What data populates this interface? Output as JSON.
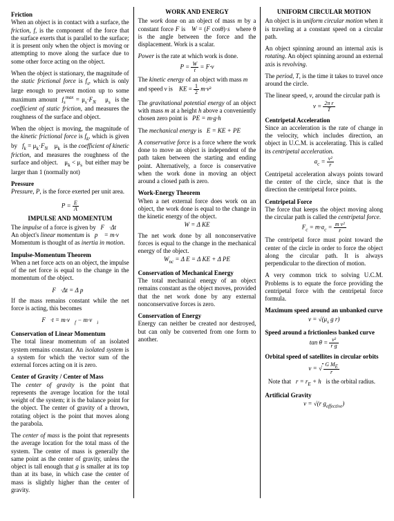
{
  "col1": {
    "h_friction": "Friction",
    "p_friction1": "When an object is in contact with a surface, the friction, f, is the component of the force that the surface exerts that is parallel to the surface; it is present only when the object is moving or attempting to move along the surface due to some other force acting on the object.",
    "p_friction2a": "When the object is stationary, the magnitude of the static frictional force is f",
    "p_friction2b": " which is only large enough to prevent motion up to some maximum amount  f",
    "p_friction2c": " = μ",
    "p_friction2d": "·F",
    "p_friction2e": "     μ",
    "p_friction2f": "  is the coefficient of static friction, and measures the roughness of the surface and object.",
    "p_friction3a": "When the object is moving, the magnitude of the kinetic frictional force is f",
    "p_friction3b": " which is given by   f",
    "p_friction3c": " = μ",
    "p_friction3d": "·F",
    "p_friction3e": "     μ",
    "p_friction3f": "  is the coefficient of kinetic friction, and measures the roughness of the surface and object.    μ",
    "p_friction3g": " < μ",
    "p_friction3h": "  but either may be larger than 1 (normally not)",
    "h_pressure": "Pressure",
    "p_pressure": "Pressure, P, is the force exerted per unit area.",
    "f_pressure": "P = E / A",
    "h_impulse": "IMPULSE AND MOMENTUM",
    "p_impulse1": "The impulse of a force is given by   F⃗·Δt",
    "p_impulse2": "An object's linear momentum is   p⃗ = m·v⃗",
    "p_impulse3": "Momentum is thought of as inertia in motion.",
    "h_imt": "Impulse-Momentum Theorem",
    "p_imt": "When a net force acts on an object, the impulse of the net force is equal to the change in the momentum of the object.",
    "f_imt": "F⃗·Δt = Δ p⃗",
    "p_imt2": "If the mass remains constant while the net force is acting, this becomes",
    "f_imt2": "F⃗·t = m·v⃗f − m·v⃗i",
    "h_clm": "Conservation of Linear Momentum",
    "p_clm": "The total linear momentum of an isolated system remains constant. An isolated system is a system for which the vector sum of the external forces acting on it is zero.",
    "h_cog": "Center of Gravity / Center of Mass",
    "p_cog": "The center of gravity is the point that represents the average location for the total weight of the system; it is the balance point for the object. The center of gravity of a thrown, rotating object is the point that moves along the parabola.",
    "p_com": "The center of mass is the point that represents the average location for the total mass of the system.  The center of mass is generally the same point as the center of gravity, unless the object is tall enough that g is smaller at its top than at its base, in which case the center of mass is slightly higher than the center of gravity."
  },
  "col2": {
    "h_work": "WORK AND ENERGY",
    "p_work1": "The work done on an object of mass m by a constant force F is   W = (F cosθ)·s   where θ is the angle between the force and the displacement.  Work is a scalar.",
    "p_power": "Power is the rate at which work is done.",
    "f_power": "P = W/t = F·v",
    "p_ke": "The kinetic energy of an object with mass m",
    "p_ke2": "and speed v is     KE = ½ m·v²",
    "p_gpe": "The gravitational potential energy of an object with mass m at a height h above a conveniently chosen zero point is    PE = m·g·h",
    "p_me": "The mechanical energy is   E = KE + PE",
    "p_cons": "A conservative force is a force where the work done to move an object is independent of the path taken between the starting and ending point.  Alternatively, a force is conservative when the work done in moving an object around a closed path is zero.",
    "h_wet": "Work-Energy Theorem",
    "p_wet": "When a net external force does work on an object, the work done is equal to the change in the kinetic energy of the object.",
    "f_wet": "W = Δ KE",
    "p_wet2": "The net work done by all nonconservative forces is equal to the change in the mechanical energy of the object.",
    "f_wet2": "Wnc = Δ E = Δ KE + Δ PE",
    "h_cme": "Conservation of Mechanical Energy",
    "p_cme": "The total mechanical energy of an object remains constant as the object moves, provided that the net work done by any external nonconservative forces is zero.",
    "h_coe": "Conservation of Energy",
    "p_coe": "Energy can neither be created nor destroyed, but can only be converted from one form to another."
  },
  "col3": {
    "h_ucm": "UNIFORM CIRCULAR MOTION",
    "p_ucm1": "An object is in uniform circular motion when it is traveling at a constant speed on a circular path.",
    "p_ucm2": "An object spinning around an internal axis is rotating.  An object spinning around an external axis is revolving.",
    "p_ucm3": "The period, T, is the time it takes to travel once around the circle.",
    "p_ucm4": "The linear speed, v, around the circular path is",
    "f_ucm4": "v = 2π r / T",
    "h_ca": "Centripetal Acceleration",
    "p_ca": "Since an acceleration is the rate of change in the velocity, which includes direction, an object in U.C.M. is accelerating.  This is called its centripetal acceleration.",
    "f_ca": "ac = v² / r",
    "p_ca2": "Centripetal acceleration always points toward the center of the circle, since that is the direction the centripetal force points.",
    "h_cf": "Centripetal Force",
    "p_cf": "The force that keeps the object moving along the circular path is called the centripetal force.",
    "f_cf": "Fc = m·ac = m v² / r",
    "p_cf2": "The centripetal force must point toward the center of the circle in order to force the object along the circular path.  It is always perpendicular to the direction of motion.",
    "p_cf3": "A very common trick to solving U.C.M. Problems is to equate the force providing the centripetal force with the centripetal force formula.",
    "h_max": "Maximum speed around an unbanked curve",
    "f_max": "v = √(μs g r)",
    "h_bank": "Speed around a frictionless banked curve",
    "f_bank": "tan θ = v² / r g",
    "h_orb": "Orbital speed of satellites in circular orbits",
    "f_orb": "v = √(G ME / r)",
    "p_orb": "Note that   r = rE + h   is the orbital radius.",
    "h_ag": "Artificial Gravity",
    "f_ag": "v = √(r g effective)"
  }
}
